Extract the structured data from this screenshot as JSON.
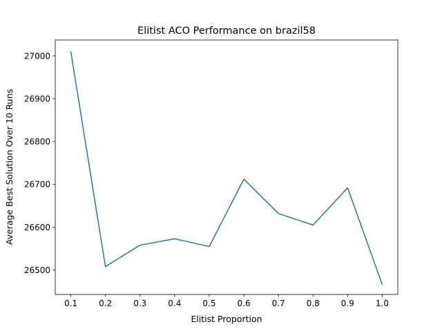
{
  "chart_data": {
    "type": "line",
    "title": "Elitist ACO Performance on brazil58",
    "xlabel": "Elitist Proportion",
    "ylabel": "Average Best Solution Over 10 Runs",
    "x": [
      0.1,
      0.2,
      0.3,
      0.4,
      0.5,
      0.6,
      0.7,
      0.8,
      0.9,
      1.0
    ],
    "x_tick_labels": [
      "0.1",
      "0.2",
      "0.3",
      "0.4",
      "0.5",
      "0.6",
      "0.7",
      "0.8",
      "0.9",
      "1.0"
    ],
    "series": [
      {
        "values": [
          27010,
          26508,
          26558,
          26573,
          26555,
          26712,
          26632,
          26605,
          26692,
          26466
        ],
        "color": "#1f77b4"
      }
    ],
    "y_ticks": [
      26500,
      26600,
      26700,
      26800,
      26900,
      27000
    ],
    "y_tick_labels": [
      "26500",
      "26600",
      "26700",
      "26800",
      "26900",
      "27000"
    ],
    "xlim": [
      0.055,
      1.045
    ],
    "ylim": [
      26443,
      27037
    ],
    "grid": false,
    "legend": "none"
  }
}
